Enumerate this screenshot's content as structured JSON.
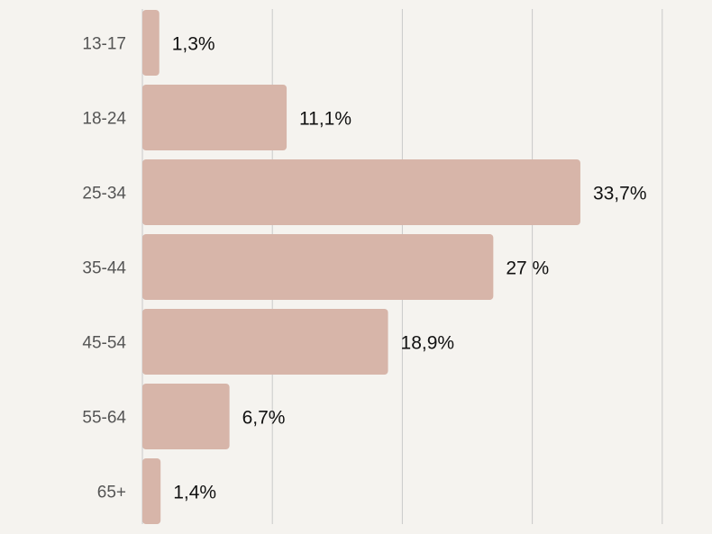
{
  "chart_data": {
    "type": "bar",
    "orientation": "horizontal",
    "categories": [
      "13-17",
      "18-24",
      "25-34",
      "35-44",
      "45-54",
      "55-64",
      "65+"
    ],
    "values": [
      1.3,
      11.1,
      33.7,
      27,
      18.9,
      6.7,
      1.4
    ],
    "value_labels": [
      "1,3%",
      "11,1%",
      "33,7%",
      "27 %",
      "18,9%",
      "6,7%",
      "1,4%"
    ],
    "xlim": [
      0,
      40
    ],
    "grid": true,
    "legend": "none",
    "title": "",
    "xlabel": "",
    "ylabel": "",
    "colors": {
      "bar": "#d7b5a9",
      "background": "#f5f3ef",
      "grid": "#c9c9c9"
    }
  }
}
